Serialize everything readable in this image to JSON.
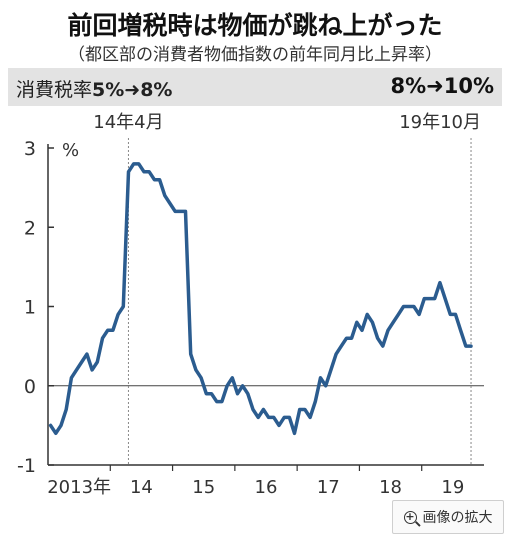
{
  "header": {
    "title": "前回増税時は物価が跳ね上がった",
    "subtitle": "（都区部の消費者物価指数の前年同月比上昇率）"
  },
  "band": {
    "left_label": "消費税率",
    "left_change": "5%➜8%",
    "right_change": "8%➜10%"
  },
  "zoom_button": {
    "label": "画像の拡大",
    "icon": "zoom-in-icon"
  },
  "chart_data": {
    "type": "line",
    "ylabel": "%",
    "ylim": [
      -1,
      3
    ],
    "yticks": [
      -1,
      0,
      1,
      2,
      3
    ],
    "year_labels": [
      "2013年",
      "14",
      "15",
      "16",
      "17",
      "18",
      "19"
    ],
    "annotations": [
      {
        "label": "14年4月",
        "month_index": 15
      },
      {
        "label": "19年10月",
        "month_index": 81
      }
    ],
    "line_color": "#2b5c8f",
    "series": [
      {
        "values": [
          -0.5,
          -0.6,
          -0.5,
          -0.3,
          0.1,
          0.2,
          0.3,
          0.4,
          0.2,
          0.3,
          0.6,
          0.7,
          0.7,
          0.9,
          1.0,
          2.7,
          2.8,
          2.8,
          2.7,
          2.7,
          2.6,
          2.6,
          2.4,
          2.3,
          2.2,
          2.2,
          2.2,
          0.4,
          0.2,
          0.1,
          -0.1,
          -0.1,
          -0.2,
          -0.2,
          0.0,
          0.1,
          -0.1,
          0.0,
          -0.1,
          -0.3,
          -0.4,
          -0.3,
          -0.4,
          -0.4,
          -0.5,
          -0.4,
          -0.4,
          -0.6,
          -0.3,
          -0.3,
          -0.4,
          -0.2,
          0.1,
          0.0,
          0.2,
          0.4,
          0.5,
          0.6,
          0.6,
          0.8,
          0.7,
          0.9,
          0.8,
          0.6,
          0.5,
          0.7,
          0.8,
          0.9,
          1.0,
          1.0,
          1.0,
          0.9,
          1.1,
          1.1,
          1.1,
          1.3,
          1.1,
          0.9,
          0.9,
          0.7,
          0.5,
          0.5
        ]
      }
    ]
  }
}
